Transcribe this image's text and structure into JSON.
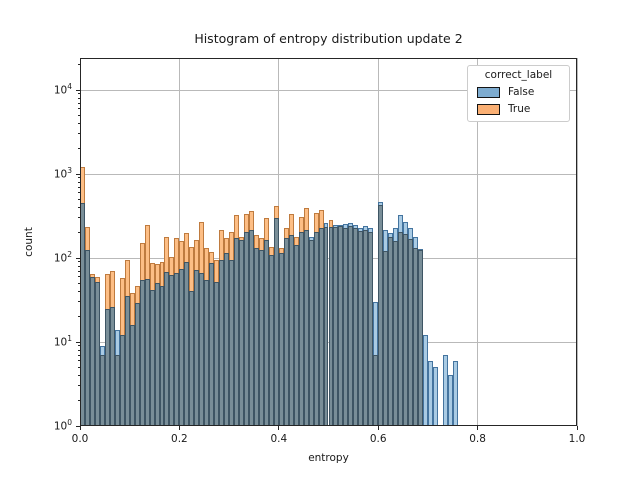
{
  "figure": {
    "title": "Histogram of entropy distribution update 2",
    "xlabel": "entropy",
    "ylabel": "count",
    "xticks": [
      "0.0",
      "0.2",
      "0.4",
      "0.6",
      "0.8",
      "1.0"
    ],
    "yticks": [
      "10^0",
      "10^1",
      "10^2",
      "10^3",
      "10^4"
    ],
    "legend": {
      "title": "correct_label",
      "entries": [
        {
          "label": "False",
          "color": "#7eacd0"
        },
        {
          "label": "True",
          "color": "#faaf73"
        }
      ]
    }
  },
  "chart_data": {
    "type": "bar",
    "subtype": "overlaid-histogram",
    "title": "Histogram of entropy distribution update 2",
    "xlabel": "entropy",
    "ylabel": "count",
    "yscale": "log",
    "xlim": [
      0.0,
      1.0
    ],
    "ylim": [
      1,
      24000
    ],
    "grid": true,
    "legend_position": "upper right",
    "legend_title": "correct_label",
    "bin_start": 0.0,
    "bin_width": 0.01,
    "series": [
      {
        "name": "False",
        "values": [
          450,
          125,
          60,
          52,
          9,
          25,
          26,
          14,
          12,
          35,
          16,
          29,
          55,
          57,
          42,
          50,
          46,
          69,
          63,
          66,
          75,
          90,
          40,
          72,
          66,
          55,
          87,
          52,
          95,
          114,
          95,
          171,
          165,
          206,
          215,
          130,
          124,
          164,
          109,
          300,
          114,
          171,
          188,
          143,
          206,
          215,
          180,
          206,
          225,
          259,
          236,
          247,
          240,
          252,
          262,
          247,
          230,
          238,
          225,
          30,
          470,
          215,
          196,
          225,
          325,
          270,
          225,
          178,
          128,
          12,
          6,
          5,
          0,
          7,
          4,
          6,
          0,
          0,
          1
        ]
      },
      {
        "name": "True",
        "values": [
          1200,
          235,
          65,
          60,
          7,
          65,
          71,
          7,
          58,
          95,
          38,
          46,
          150,
          245,
          87,
          84,
          90,
          180,
          104,
          171,
          159,
          200,
          136,
          164,
          270,
          130,
          119,
          95,
          215,
          171,
          206,
          325,
          180,
          330,
          360,
          188,
          171,
          296,
          136,
          420,
          131,
          225,
          331,
          180,
          311,
          395,
          165,
          340,
          372,
          236,
          283,
          232,
          238,
          230,
          240,
          230,
          212,
          218,
          205,
          7,
          430,
          120,
          180,
          160,
          205,
          195,
          170,
          130,
          124,
          0,
          0,
          0,
          0,
          0,
          0,
          0,
          0,
          0,
          1
        ]
      }
    ],
    "colors": {
      "false_fill": "#a9cbe4",
      "false_edge": "#44749f",
      "true_fill": "#fdbe85",
      "true_edge": "#bf7b3f",
      "overlap_fill": "#798e98",
      "overlap_edge": "#3e5564",
      "grid": "#b9b9b9",
      "spine": "#262626"
    }
  }
}
